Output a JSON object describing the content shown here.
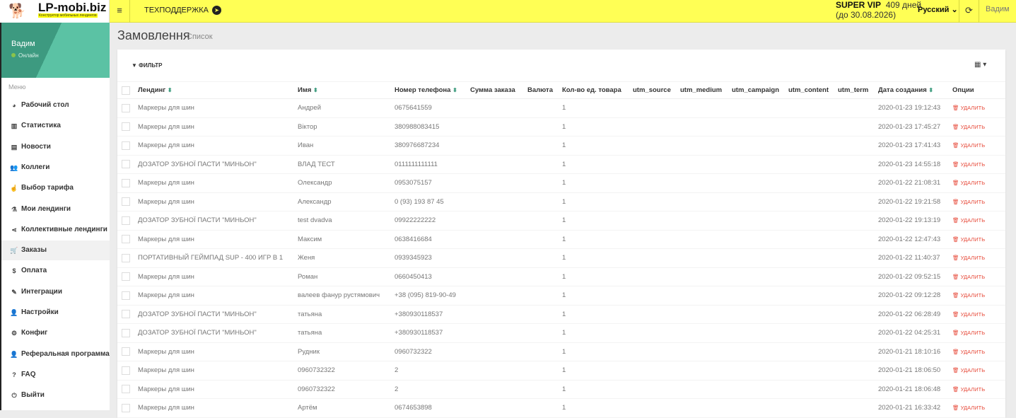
{
  "topbar": {
    "logo_name": "LP-mobi.biz",
    "logo_tagline": "Конструктор мобильных лендингов",
    "support": "ТЕХПОДДЕРЖКА",
    "plan": "SUPER VIP",
    "days": "409 дней",
    "until": "(до 30.08.2026)",
    "language": "Русский",
    "user": "Вадим"
  },
  "sidebar": {
    "user_name": "Вадим",
    "status": "Онлайн",
    "menu_header": "Меню",
    "items": [
      {
        "label": "Рабочий стол",
        "icon": "dashboard-icon",
        "glyph": "◕"
      },
      {
        "label": "Статистика",
        "icon": "bar-chart-icon",
        "glyph": "▥"
      },
      {
        "label": "Новости",
        "icon": "newspaper-icon",
        "glyph": "▤"
      },
      {
        "label": "Коллеги",
        "icon": "users-icon",
        "glyph": "👥"
      },
      {
        "label": "Выбор тарифа",
        "icon": "hand-pointer-icon",
        "glyph": "☝"
      },
      {
        "label": "Мои лендинги",
        "icon": "flask-icon",
        "glyph": "⚗"
      },
      {
        "label": "Коллективные лендинги",
        "icon": "share-icon",
        "glyph": "⋖"
      },
      {
        "label": "Заказы",
        "icon": "cart-icon",
        "glyph": "🛒",
        "active": true
      },
      {
        "label": "Оплата",
        "icon": "dollar-icon",
        "glyph": "$"
      },
      {
        "label": "Интеграции",
        "icon": "plug-icon",
        "glyph": "✎"
      },
      {
        "label": "Настройки",
        "icon": "user-icon",
        "glyph": "👤"
      },
      {
        "label": "Конфиг",
        "icon": "cogs-icon",
        "glyph": "⚙"
      },
      {
        "label": "Реферальная программа",
        "icon": "user-plus-icon",
        "glyph": "👤"
      },
      {
        "label": "FAQ",
        "icon": "question-icon",
        "glyph": "?"
      },
      {
        "label": "Выйти",
        "icon": "power-icon",
        "glyph": "⏻"
      }
    ]
  },
  "page": {
    "title": "Замовлення",
    "subtitle": "Список",
    "filter": "ФИЛЬТР",
    "delete_label": "УДАЛИТЬ"
  },
  "table": {
    "columns": [
      "Лендинг",
      "Имя",
      "Номер телефона",
      "Сумма заказа",
      "Валюта",
      "Кол-во ед. товара",
      "utm_source",
      "utm_medium",
      "utm_campaign",
      "utm_content",
      "utm_term",
      "Дата создания",
      "Опции"
    ],
    "sortable": [
      true,
      true,
      true,
      false,
      false,
      false,
      false,
      false,
      false,
      false,
      false,
      true,
      false
    ],
    "rows": [
      [
        "Маркеры для шин",
        "Андрей",
        "0675641559",
        "",
        "",
        "1",
        "",
        "",
        "",
        "",
        "",
        "2020-01-23 19:12:43"
      ],
      [
        "Маркеры для шин",
        "Віктор",
        "380988083415",
        "",
        "",
        "1",
        "",
        "",
        "",
        "",
        "",
        "2020-01-23 17:45:27"
      ],
      [
        "Маркеры для шин",
        "Иван",
        "380976687234",
        "",
        "",
        "1",
        "",
        "",
        "",
        "",
        "",
        "2020-01-23 17:41:43"
      ],
      [
        "ДОЗАТОР ЗУБНОЇ ПАСТИ \"МИНЬОН\"",
        "ВЛАД ТЕСТ",
        "0111111111111",
        "",
        "",
        "1",
        "",
        "",
        "",
        "",
        "",
        "2020-01-23 14:55:18"
      ],
      [
        "Маркеры для шин",
        "Олександр",
        "0953075157",
        "",
        "",
        "1",
        "",
        "",
        "",
        "",
        "",
        "2020-01-22 21:08:31"
      ],
      [
        "Маркеры для шин",
        "Александр",
        "0 (93) 193 87 45",
        "",
        "",
        "1",
        "",
        "",
        "",
        "",
        "",
        "2020-01-22 19:21:58"
      ],
      [
        "ДОЗАТОР ЗУБНОЇ ПАСТИ \"МИНЬОН\"",
        "test dvadva",
        "09922222222",
        "",
        "",
        "1",
        "",
        "",
        "",
        "",
        "",
        "2020-01-22 19:13:19"
      ],
      [
        "Маркеры для шин",
        "Максим",
        "0638416684",
        "",
        "",
        "1",
        "",
        "",
        "",
        "",
        "",
        "2020-01-22 12:47:43"
      ],
      [
        "ПОРТАТИВНЫЙ ГЕЙМПАД SUP - 400 ИГР В 1",
        "Женя",
        "0939345923",
        "",
        "",
        "1",
        "",
        "",
        "",
        "",
        "",
        "2020-01-22 11:40:37"
      ],
      [
        "Маркеры для шин",
        "Роман",
        "0660450413",
        "",
        "",
        "1",
        "",
        "",
        "",
        "",
        "",
        "2020-01-22 09:52:15"
      ],
      [
        "Маркеры для шин",
        "валеев фанур рустямович",
        "+38 (095) 819-90-49",
        "",
        "",
        "1",
        "",
        "",
        "",
        "",
        "",
        "2020-01-22 09:12:28"
      ],
      [
        "ДОЗАТОР ЗУБНОЇ ПАСТИ \"МИНЬОН\"",
        "татьяна",
        "+380930118537",
        "",
        "",
        "1",
        "",
        "",
        "",
        "",
        "",
        "2020-01-22 06:28:49"
      ],
      [
        "ДОЗАТОР ЗУБНОЇ ПАСТИ \"МИНЬОН\"",
        "татьяна",
        "+380930118537",
        "",
        "",
        "1",
        "",
        "",
        "",
        "",
        "",
        "2020-01-22 04:25:31"
      ],
      [
        "Маркеры для шин",
        "Рудник",
        "0960732322",
        "",
        "",
        "1",
        "",
        "",
        "",
        "",
        "",
        "2020-01-21 18:10:16"
      ],
      [
        "Маркеры для шин",
        "0960732322",
        "2",
        "",
        "",
        "1",
        "",
        "",
        "",
        "",
        "",
        "2020-01-21 18:06:50"
      ],
      [
        "Маркеры для шин",
        "0960732322",
        "2",
        "",
        "",
        "1",
        "",
        "",
        "",
        "",
        "",
        "2020-01-21 18:06:48"
      ],
      [
        "Маркеры для шин",
        "Артём",
        "0674653898",
        "",
        "",
        "1",
        "",
        "",
        "",
        "",
        "",
        "2020-01-21 16:33:42"
      ]
    ]
  },
  "colors": {
    "topbar": "#ffff55",
    "accent": "#3d9a80",
    "delete": "#e74c3c"
  }
}
